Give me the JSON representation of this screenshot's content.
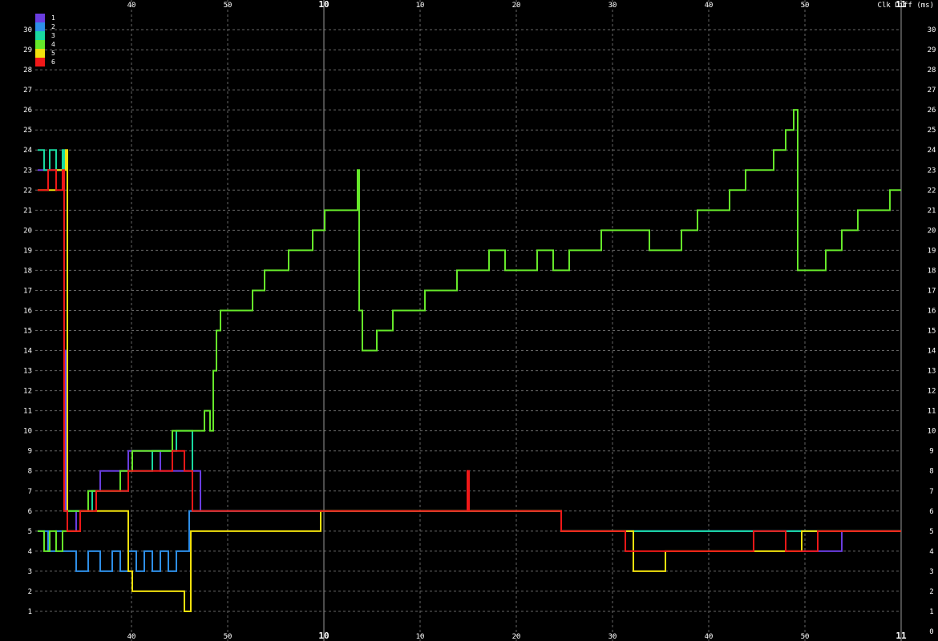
{
  "chart_data": {
    "type": "line",
    "ylabel": "Clk Diff (ms)",
    "ylim": [
      0,
      31
    ],
    "yticks": [
      1,
      2,
      3,
      4,
      5,
      6,
      7,
      8,
      9,
      10,
      11,
      12,
      13,
      14,
      15,
      16,
      17,
      18,
      19,
      20,
      21,
      22,
      23,
      24,
      25,
      26,
      27,
      28,
      29,
      30
    ],
    "xlim": [
      0,
      1170
    ],
    "x_tick_labels": [
      {
        "x": 164,
        "label": "40",
        "bold": false
      },
      {
        "x": 284,
        "label": "50",
        "bold": false
      },
      {
        "x": 404,
        "label": "10",
        "bold": true
      },
      {
        "x": 524,
        "label": "10",
        "bold": false
      },
      {
        "x": 644,
        "label": "20",
        "bold": false
      },
      {
        "x": 764,
        "label": "30",
        "bold": false
      },
      {
        "x": 884,
        "label": "40",
        "bold": false
      },
      {
        "x": 1004,
        "label": "50",
        "bold": false
      },
      {
        "x": 1124,
        "label": "11",
        "bold": true
      }
    ],
    "grid": true,
    "legend_position": "top-left",
    "series": [
      {
        "name": "1",
        "color": "#6a3de0",
        "x": [
          47,
          60,
          70,
          78,
          80,
          82,
          84,
          95,
          110,
          125,
          140,
          150,
          160,
          175,
          190,
          200,
          210,
          225,
          240,
          250,
          260,
          280,
          300,
          330,
          360,
          400,
          440,
          480,
          520,
          560,
          600,
          640,
          680,
          700,
          720,
          760,
          800,
          850,
          900,
          950,
          1000,
          1050,
          1100,
          1124
        ],
        "y": [
          23,
          23,
          23,
          23,
          14,
          6,
          5,
          6,
          7,
          8,
          8,
          8,
          9,
          9,
          9,
          8,
          8,
          8,
          8,
          6,
          6,
          6,
          6,
          6,
          6,
          6,
          6,
          6,
          6,
          6,
          6,
          6,
          6,
          5,
          5,
          5,
          5,
          5,
          5,
          5,
          4,
          5,
          5,
          5
        ]
      },
      {
        "name": "2",
        "color": "#2e8fe8",
        "x": [
          47,
          60,
          70,
          78,
          84,
          95,
          110,
          125,
          140,
          150,
          160,
          170,
          180,
          190,
          200,
          210,
          220,
          232,
          236,
          240,
          260,
          280,
          300,
          340,
          380,
          420,
          460,
          500,
          540,
          580,
          620,
          660,
          700,
          740,
          780,
          820,
          860,
          900,
          940,
          980,
          1020,
          1060,
          1100,
          1124
        ],
        "y": [
          5,
          4,
          5,
          4,
          4,
          3,
          4,
          3,
          4,
          3,
          4,
          3,
          4,
          3,
          4,
          3,
          4,
          4,
          6,
          6,
          6,
          6,
          6,
          6,
          6,
          6,
          6,
          6,
          6,
          6,
          6,
          6,
          5,
          5,
          5,
          5,
          5,
          5,
          5,
          5,
          5,
          5,
          5,
          5
        ]
      },
      {
        "name": "3",
        "color": "#19d9a0",
        "x": [
          47,
          55,
          62,
          70,
          78,
          80,
          84,
          100,
          115,
          130,
          145,
          160,
          175,
          190,
          205,
          220,
          232,
          240,
          250,
          260,
          270,
          280,
          300,
          340,
          380,
          420,
          460,
          500,
          540,
          580,
          620,
          660,
          700,
          740,
          780,
          820,
          860,
          900,
          940,
          980,
          1020,
          1060,
          1100,
          1124
        ],
        "y": [
          24,
          23,
          24,
          23,
          24,
          6,
          6,
          6,
          7,
          7,
          7,
          8,
          8,
          9,
          9,
          10,
          10,
          6,
          6,
          6,
          6,
          6,
          6,
          6,
          6,
          6,
          6,
          6,
          6,
          6,
          6,
          6,
          5,
          5,
          5,
          5,
          5,
          5,
          5,
          5,
          5,
          5,
          5,
          5
        ]
      },
      {
        "name": "4",
        "color": "#66e82a",
        "x": [
          47,
          55,
          62,
          70,
          78,
          84,
          100,
          110,
          130,
          150,
          165,
          180,
          200,
          215,
          230,
          245,
          255,
          262,
          266,
          270,
          275,
          285,
          300,
          315,
          330,
          345,
          360,
          375,
          390,
          405,
          425,
          446,
          448,
          452,
          470,
          490,
          510,
          530,
          550,
          570,
          590,
          610,
          630,
          650,
          670,
          690,
          710,
          730,
          750,
          770,
          790,
          810,
          830,
          850,
          870,
          890,
          910,
          930,
          950,
          965,
          980,
          990,
          995,
          1010,
          1030,
          1050,
          1070,
          1090,
          1110,
          1124
        ],
        "y": [
          5,
          4,
          5,
          4,
          5,
          6,
          6,
          7,
          7,
          8,
          9,
          9,
          9,
          10,
          10,
          10,
          11,
          10,
          13,
          15,
          16,
          16,
          16,
          17,
          18,
          18,
          19,
          19,
          20,
          21,
          21,
          23,
          16,
          14,
          15,
          16,
          16,
          17,
          17,
          18,
          18,
          19,
          18,
          18,
          19,
          18,
          19,
          19,
          20,
          20,
          20,
          19,
          19,
          20,
          21,
          21,
          22,
          23,
          23,
          24,
          25,
          26,
          18,
          18,
          19,
          20,
          21,
          21,
          22,
          22
        ]
      },
      {
        "name": "5",
        "color": "#f2e10d",
        "x": [
          47,
          60,
          70,
          78,
          82,
          84,
          100,
          120,
          140,
          158,
          160,
          165,
          180,
          200,
          215,
          225,
          230,
          234,
          238,
          260,
          280,
          300,
          330,
          360,
          400,
          440,
          480,
          520,
          560,
          600,
          640,
          680,
          700,
          740,
          780,
          790,
          830,
          870,
          900,
          950,
          1000,
          1050,
          1100,
          1124
        ],
        "y": [
          22,
          22,
          23,
          23,
          24,
          5,
          6,
          6,
          6,
          6,
          3,
          2,
          2,
          2,
          2,
          2,
          1,
          1,
          5,
          5,
          5,
          5,
          5,
          5,
          6,
          6,
          6,
          6,
          6,
          6,
          6,
          6,
          5,
          5,
          5,
          3,
          4,
          4,
          4,
          4,
          5,
          5,
          5,
          5
        ]
      },
      {
        "name": "6",
        "color": "#f01818",
        "x": [
          47,
          60,
          70,
          78,
          80,
          84,
          100,
          120,
          140,
          160,
          180,
          200,
          215,
          230,
          234,
          240,
          260,
          280,
          300,
          330,
          360,
          390,
          420,
          450,
          480,
          510,
          540,
          560,
          583,
          585,
          600,
          640,
          680,
          700,
          740,
          780,
          820,
          860,
          900,
          940,
          980,
          1020,
          1060,
          1100,
          1124
        ],
        "y": [
          22,
          23,
          22,
          23,
          6,
          5,
          6,
          7,
          7,
          8,
          8,
          8,
          9,
          8,
          8,
          6,
          6,
          6,
          6,
          6,
          6,
          6,
          6,
          6,
          6,
          6,
          6,
          6,
          8,
          6,
          6,
          6,
          6,
          5,
          5,
          4,
          4,
          4,
          4,
          5,
          4,
          5,
          5,
          5,
          5
        ]
      }
    ]
  }
}
